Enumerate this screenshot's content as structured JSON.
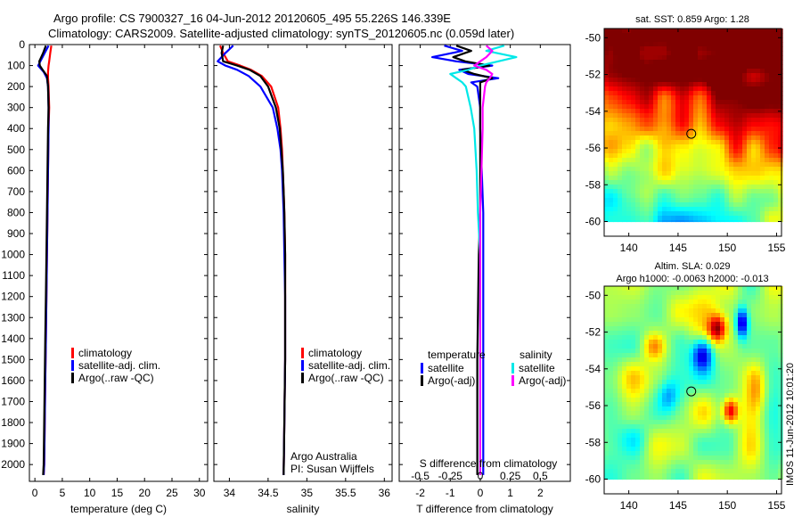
{
  "header": {
    "line1": "Argo profile: CS 7900327_16 04-Jun-2012 20120605_495 55.226S 146.339E",
    "line2": "Climatology: CARS2009. Satellite-adjusted climatology: synTS_20120605.nc (0.059d later)"
  },
  "colors": {
    "climatology": "#ff0000",
    "satellite": "#0000ff",
    "argo": "#000000",
    "satellite_s": "#00e8e8",
    "argo_s": "#ff00ff"
  },
  "chart_data": [
    {
      "type": "line",
      "id": "temperature",
      "xlabel": "temperature (deg C)",
      "ylabel": "",
      "xlim": [
        -1,
        31.5
      ],
      "ylim": [
        2080,
        0
      ],
      "xticks": [
        0,
        5,
        10,
        15,
        20,
        25,
        30
      ],
      "yticks": [
        0,
        100,
        200,
        300,
        400,
        500,
        600,
        700,
        800,
        900,
        1000,
        1100,
        1200,
        1300,
        1400,
        1500,
        1600,
        1700,
        1800,
        1900,
        2000
      ],
      "y_tick_labels": [
        "0",
        "100",
        "200",
        "300",
        "400",
        "500",
        "600",
        "700",
        "800",
        "900",
        "1000",
        "1100",
        "1200",
        "1300",
        "1400",
        "1500",
        "1600",
        "1700",
        "1800",
        "1900",
        "2000"
      ],
      "legend": {
        "position": "center-right",
        "entries": [
          "climatology",
          "satellite-adj. clim.",
          "Argo(..raw -QC)"
        ]
      },
      "series": [
        {
          "name": "climatology",
          "color": "#ff0000",
          "y": [
            5,
            40,
            80,
            100,
            130,
            160,
            200,
            300,
            400,
            600,
            800,
            1000,
            1200,
            1400,
            1600,
            1800,
            2000,
            2050
          ],
          "x": [
            3.0,
            2.8,
            2.6,
            2.5,
            2.4,
            2.4,
            2.5,
            2.6,
            2.5,
            2.4,
            2.3,
            2.2,
            2.1,
            2.0,
            1.9,
            1.8,
            1.7,
            1.6
          ]
        },
        {
          "name": "satellite-adj. clim.",
          "color": "#0000ff",
          "y": [
            5,
            40,
            80,
            100,
            130,
            160,
            200,
            300,
            400,
            600,
            800,
            1000,
            1200,
            1400,
            1600,
            1800,
            2000,
            2050
          ],
          "x": [
            2.5,
            1.8,
            1.0,
            0.6,
            1.6,
            2.2,
            2.4,
            2.5,
            2.5,
            2.4,
            2.3,
            2.2,
            2.1,
            2.0,
            1.9,
            1.8,
            1.7,
            1.6
          ]
        },
        {
          "name": "Argo(..raw -QC)",
          "color": "#000000",
          "y": [
            5,
            40,
            80,
            100,
            120,
            150,
            200,
            300,
            400,
            600,
            800,
            1000,
            1200,
            1400,
            1600,
            1800,
            2000,
            2050
          ],
          "x": [
            2.0,
            1.5,
            0.8,
            0.9,
            1.4,
            2.2,
            2.4,
            2.5,
            2.4,
            2.3,
            2.2,
            2.1,
            2.0,
            1.9,
            1.8,
            1.7,
            1.6,
            1.5
          ]
        }
      ]
    },
    {
      "type": "line",
      "id": "salinity",
      "xlabel": "salinity",
      "ylabel": "",
      "xlim": [
        33.8,
        36.1
      ],
      "ylim": [
        2080,
        0
      ],
      "xticks": [
        34,
        34.5,
        35,
        35.5,
        36
      ],
      "x_tick_labels": [
        "34",
        "34.5",
        "35",
        "35.5",
        "36"
      ],
      "legend": {
        "position": "center-right",
        "entries": [
          "climatology",
          "satellite-adj. clim.",
          "Argo(..raw -QC)"
        ]
      },
      "annotations": [
        "Argo Australia",
        "PI: Susan Wijffels"
      ],
      "series": [
        {
          "name": "climatology",
          "color": "#ff0000",
          "y": [
            5,
            40,
            80,
            100,
            120,
            150,
            200,
            300,
            400,
            500,
            600,
            700,
            800,
            1000,
            1200,
            1500,
            1800,
            2050
          ],
          "x": [
            33.88,
            33.92,
            33.98,
            34.14,
            34.28,
            34.42,
            34.54,
            34.63,
            34.66,
            34.68,
            34.69,
            34.7,
            34.71,
            34.72,
            34.72,
            34.72,
            34.71,
            34.7
          ]
        },
        {
          "name": "satellite-adj. clim.",
          "color": "#0000ff",
          "y": [
            5,
            40,
            80,
            100,
            120,
            150,
            200,
            300,
            400,
            500,
            600,
            700,
            800,
            1000,
            1200,
            1500,
            1800,
            2050
          ],
          "x": [
            34.05,
            33.95,
            33.85,
            33.95,
            34.1,
            34.25,
            34.4,
            34.56,
            34.62,
            34.66,
            34.68,
            34.69,
            34.7,
            34.71,
            34.72,
            34.72,
            34.71,
            34.7
          ]
        },
        {
          "name": "Argo(..raw -QC)",
          "color": "#000000",
          "y": [
            5,
            40,
            80,
            100,
            120,
            150,
            200,
            300,
            400,
            500,
            600,
            700,
            800,
            1000,
            1200,
            1500,
            1800,
            2050
          ],
          "x": [
            33.92,
            33.9,
            33.92,
            34.1,
            34.26,
            34.4,
            34.5,
            34.6,
            34.65,
            34.67,
            34.69,
            34.7,
            34.71,
            34.72,
            34.72,
            34.72,
            34.71,
            34.7
          ]
        }
      ]
    },
    {
      "type": "line",
      "id": "differences",
      "xlabel": "T difference from climatology",
      "xlabel_top": "S difference from climatology",
      "ylabel": "",
      "xlim": [
        -2.7,
        3.0
      ],
      "ylim": [
        2080,
        0
      ],
      "xticks": [
        -2,
        -1,
        0,
        1,
        2
      ],
      "x_tick_labels": [
        "-2",
        "-1",
        "0",
        "1",
        "2"
      ],
      "s_xticks": [
        -0.5,
        -0.25,
        0,
        0.25,
        0.5
      ],
      "s_x_tick_labels": [
        "-0.5",
        "-0.25",
        "0",
        "0.25",
        "0.5"
      ],
      "s_scale": 0.25,
      "legend": {
        "position": "center-right",
        "temperature_heading": "temperature",
        "salinity_heading": "salinity",
        "temperature_entries": [
          "satellite",
          "Argo(-adj)"
        ],
        "salinity_entries": [
          "satellite",
          "Argo(-adj)"
        ]
      },
      "series": [
        {
          "name": "temperature satellite",
          "color": "#0000ff",
          "y": [
            5,
            30,
            60,
            80,
            100,
            120,
            140,
            160,
            180,
            200,
            300,
            400,
            600,
            800,
            1000,
            1500,
            2050
          ],
          "x": [
            -1.2,
            -0.6,
            -1.6,
            -0.8,
            0.4,
            -0.7,
            -0.4,
            0.6,
            -0.3,
            -0.1,
            0.0,
            0.0,
            0.05,
            0.1,
            0.1,
            0.1,
            0.1
          ]
        },
        {
          "name": "temperature Argo(-adj)",
          "color": "#000000",
          "y": [
            5,
            30,
            60,
            80,
            100,
            120,
            140,
            160,
            180,
            200,
            300,
            400,
            600,
            800,
            1000,
            1500,
            2050
          ],
          "x": [
            -0.8,
            -0.3,
            -0.9,
            -0.5,
            0.3,
            -0.6,
            -0.2,
            0.4,
            0.0,
            0.0,
            0.0,
            0.0,
            0.0,
            0.0,
            -0.05,
            -0.1,
            -0.1
          ]
        },
        {
          "name": "salinity satellite",
          "color": "#00e8e8",
          "y": [
            5,
            30,
            60,
            80,
            100,
            120,
            140,
            160,
            180,
            200,
            300,
            400,
            600,
            800,
            1000,
            1500,
            2050
          ],
          "x": [
            0.2,
            0.05,
            0.3,
            0.15,
            0.0,
            -0.1,
            -0.25,
            -0.2,
            -0.15,
            -0.12,
            -0.08,
            -0.05,
            -0.03,
            -0.02,
            0.0,
            0.0,
            0.0
          ]
        },
        {
          "name": "salinity Argo(-adj)",
          "color": "#ff00ff",
          "y": [
            5,
            30,
            60,
            80,
            100,
            120,
            140,
            160,
            180,
            200,
            300,
            400,
            600,
            800,
            1000,
            1500,
            2050
          ],
          "x": [
            0.05,
            0.1,
            0.05,
            0.0,
            -0.05,
            0.05,
            0.1,
            0.08,
            0.05,
            0.04,
            0.02,
            0.02,
            0.01,
            0.0,
            0.0,
            0.0,
            0.0
          ]
        }
      ]
    },
    {
      "type": "heatmap",
      "id": "sst-map",
      "title": "sat. SST: 0.859 Argo: 1.28",
      "xlim": [
        137.5,
        155.5
      ],
      "ylim": [
        -60.8,
        -49.5
      ],
      "data_lat_min": -60,
      "xticks": [
        140,
        145,
        150,
        155
      ],
      "x_tick_labels": [
        "140",
        "145",
        "150",
        "155"
      ],
      "yticks": [
        -50,
        -52,
        -54,
        -56,
        -58,
        -60
      ],
      "y_tick_labels": [
        "-50",
        "-52",
        "-54",
        "-56",
        "-58",
        "-60"
      ],
      "float_position": {
        "lon": 146.339,
        "lat": -55.226
      }
    },
    {
      "type": "heatmap",
      "id": "sla-map",
      "title": "Altim. SLA: 0.029",
      "subtitle": "Argo h1000: -0.0063 h2000: -0.013",
      "xlim": [
        137.5,
        155.5
      ],
      "ylim": [
        -60.8,
        -49.5
      ],
      "data_lat_min": -60,
      "xticks": [
        140,
        145,
        150,
        155
      ],
      "x_tick_labels": [
        "140",
        "145",
        "150",
        "155"
      ],
      "yticks": [
        -50,
        -52,
        -54,
        -56,
        -58,
        -60
      ],
      "y_tick_labels": [
        "-50",
        "-52",
        "-54",
        "-56",
        "-58",
        "-60"
      ],
      "float_position": {
        "lon": 146.339,
        "lat": -55.226
      },
      "side_label": "IMOS 11-Jun-2012 10:01:20"
    }
  ]
}
